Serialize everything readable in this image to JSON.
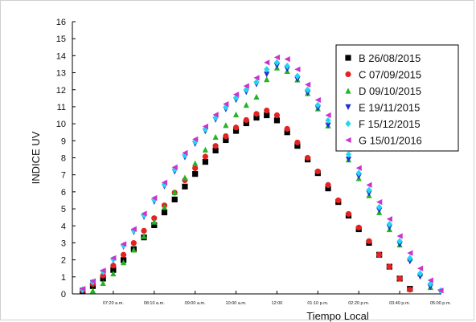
{
  "chart_data": {
    "type": "scatter",
    "title": "",
    "xlabel": "Tiempo Local",
    "ylabel": "INDICE UV",
    "ylim": [
      0,
      16
    ],
    "xlim": [
      0,
      9.0
    ],
    "yticks": [
      0,
      1,
      2,
      3,
      4,
      5,
      6,
      7,
      8,
      9,
      10,
      11,
      12,
      13,
      14,
      15,
      16
    ],
    "xticks": [
      {
        "pos": 1,
        "label": "07:20 a.m."
      },
      {
        "pos": 2,
        "label": "08:10 a.m."
      },
      {
        "pos": 3,
        "label": "09:00 a.m."
      },
      {
        "pos": 4,
        "label": "10:00 a.m."
      },
      {
        "pos": 5,
        "label": "12:00"
      },
      {
        "pos": 6,
        "label": "01:10 p.m."
      },
      {
        "pos": 7,
        "label": "02:20 p.m."
      },
      {
        "pos": 8,
        "label": "03:40 p.m."
      },
      {
        "pos": 9,
        "label": "05:00 p.m."
      }
    ],
    "legend_position": "top-right",
    "grid": false,
    "series": [
      {
        "name": "B 26/08/2015",
        "color": "#000000",
        "marker": "square",
        "x": [
          0.25,
          0.5,
          0.75,
          1.0,
          1.25,
          1.5,
          1.75,
          2.0,
          2.25,
          2.5,
          2.75,
          3.0,
          3.25,
          3.5,
          3.75,
          4.0,
          4.25,
          4.5,
          4.75,
          5.0,
          5.25,
          5.5,
          5.75,
          6.0,
          6.25,
          6.5,
          6.75,
          7.0,
          7.25,
          7.5,
          7.75,
          8.0,
          8.25
        ],
        "y": [
          0.15,
          0.46,
          0.9,
          1.41,
          1.99,
          2.63,
          3.32,
          4.04,
          4.79,
          5.55,
          6.31,
          7.05,
          7.76,
          8.43,
          9.04,
          9.58,
          10.03,
          10.36,
          10.5,
          10.2,
          9.5,
          8.7,
          7.9,
          7.1,
          6.2,
          5.4,
          4.6,
          3.8,
          3.0,
          2.3,
          1.6,
          0.9,
          0.3
        ]
      },
      {
        "name": "C 07/09/2015",
        "color": "#e32222",
        "marker": "circle",
        "x": [
          0.25,
          0.5,
          0.75,
          1.0,
          1.25,
          1.5,
          1.75,
          2.0,
          2.25,
          2.5,
          2.75,
          3.0,
          3.25,
          3.5,
          3.75,
          4.0,
          4.25,
          4.5,
          4.75,
          5.0,
          5.25,
          5.5,
          5.75,
          6.0,
          6.25,
          6.5,
          6.75,
          7.0,
          7.25,
          7.5,
          7.75,
          8.0,
          8.25
        ],
        "y": [
          0.2,
          0.58,
          1.08,
          1.66,
          2.3,
          2.99,
          3.71,
          4.45,
          5.2,
          5.95,
          6.68,
          7.39,
          8.07,
          8.7,
          9.27,
          9.78,
          10.22,
          10.58,
          10.78,
          10.5,
          9.7,
          8.9,
          8.0,
          7.2,
          6.4,
          5.5,
          4.7,
          3.9,
          3.1,
          2.3,
          1.6,
          0.9,
          0.25
        ]
      },
      {
        "name": "D 09/10/2015",
        "color": "#22b522",
        "marker": "triangle-up",
        "x": [
          0.5,
          0.75,
          1.0,
          1.25,
          1.5,
          1.75,
          2.0,
          2.25,
          2.5,
          2.75,
          3.0,
          3.25,
          3.5,
          3.75,
          4.0,
          4.25,
          4.5,
          4.75,
          5.0,
          5.25,
          5.5,
          5.75,
          6.0,
          6.25,
          6.5,
          6.75,
          7.0,
          7.25,
          7.5,
          7.75,
          8.0,
          8.25,
          8.5,
          8.75
        ],
        "y": [
          0.2,
          0.64,
          1.2,
          1.86,
          2.6,
          3.4,
          4.24,
          5.11,
          5.98,
          6.84,
          7.68,
          8.48,
          9.23,
          9.92,
          10.55,
          11.11,
          11.59,
          12.62,
          13.3,
          13.1,
          12.6,
          11.8,
          10.9,
          9.9,
          8.9,
          7.9,
          6.8,
          5.8,
          4.8,
          3.8,
          2.9,
          2.1,
          1.2,
          0.4
        ]
      },
      {
        "name": "E 19/11/2015",
        "color": "#1f2fd6",
        "marker": "triangle-down",
        "x": [
          0.25,
          0.5,
          0.75,
          1.0,
          1.25,
          1.5,
          1.75,
          2.0,
          2.25,
          2.5,
          2.75,
          3.0,
          3.25,
          3.5,
          3.75,
          4.0,
          4.25,
          4.5,
          4.75,
          5.0,
          5.25,
          5.5,
          5.75,
          6.0,
          6.25,
          6.5,
          6.75,
          7.0,
          7.25,
          7.5,
          7.75,
          8.0,
          8.25,
          8.5,
          8.75,
          9.0
        ],
        "y": [
          0.2,
          0.65,
          1.25,
          1.96,
          2.76,
          3.62,
          4.51,
          5.41,
          6.31,
          7.18,
          8.02,
          8.81,
          9.55,
          10.23,
          10.84,
          11.39,
          11.86,
          12.31,
          12.9,
          13.4,
          13.2,
          12.6,
          11.8,
          10.9,
          9.9,
          8.9,
          7.9,
          6.9,
          5.9,
          4.9,
          3.9,
          2.9,
          1.9,
          1.0,
          0.4,
          0.1
        ]
      },
      {
        "name": "F 15/12/2015",
        "color": "#22d8f0",
        "marker": "diamond",
        "x": [
          0.25,
          0.5,
          0.75,
          1.0,
          1.25,
          1.5,
          1.75,
          2.0,
          2.25,
          2.5,
          2.75,
          3.0,
          3.25,
          3.5,
          3.75,
          4.0,
          4.25,
          4.5,
          4.75,
          5.0,
          5.25,
          5.5,
          5.75,
          6.0,
          6.25,
          6.5,
          6.75,
          7.0,
          7.25,
          7.5,
          7.75,
          8.0,
          8.25,
          8.5,
          8.75,
          9.0
        ],
        "y": [
          0.25,
          0.7,
          1.31,
          2.04,
          2.85,
          3.72,
          4.62,
          5.53,
          6.43,
          7.31,
          8.15,
          8.94,
          9.68,
          10.36,
          10.98,
          11.53,
          12.01,
          12.45,
          13.2,
          13.6,
          13.4,
          12.8,
          12.0,
          11.1,
          10.2,
          9.2,
          8.2,
          7.1,
          6.1,
          5.1,
          4.1,
          3.1,
          2.1,
          1.2,
          0.6,
          0.2
        ]
      },
      {
        "name": "G 15/01/2016",
        "color": "#cc33cc",
        "marker": "triangle-left",
        "x": [
          0.25,
          0.5,
          0.75,
          1.0,
          1.25,
          1.5,
          1.75,
          2.0,
          2.25,
          2.5,
          2.75,
          3.0,
          3.25,
          3.5,
          3.75,
          4.0,
          4.25,
          4.5,
          4.75,
          5.0,
          5.25,
          5.5,
          5.75,
          6.0,
          6.25,
          6.5,
          6.75,
          7.0,
          7.25,
          7.5,
          7.75,
          8.0,
          8.25,
          8.5,
          8.75,
          9.0
        ],
        "y": [
          0.3,
          0.75,
          1.37,
          2.11,
          2.93,
          3.81,
          4.72,
          5.64,
          6.55,
          7.44,
          8.29,
          9.09,
          9.84,
          10.53,
          11.16,
          11.72,
          12.22,
          12.7,
          13.6,
          13.9,
          13.8,
          13.2,
          12.3,
          11.4,
          10.5,
          9.5,
          8.5,
          7.4,
          6.4,
          5.4,
          4.4,
          3.4,
          2.4,
          1.5,
          0.8,
          0.2
        ]
      }
    ]
  }
}
